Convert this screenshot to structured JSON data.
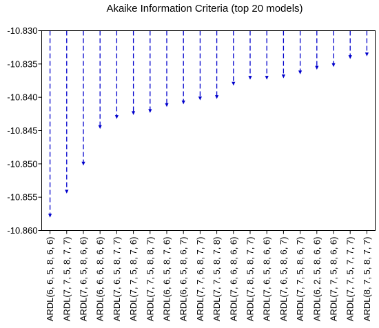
{
  "chart_data": {
    "type": "dropline",
    "title": "Akaike Information Criteria (top 20 models)",
    "xlabel": "",
    "ylabel": "",
    "ylim": [
      -10.86,
      -10.83
    ],
    "yticks": [
      "-10.830",
      "-10.835",
      "-10.840",
      "-10.845",
      "-10.850",
      "-10.855",
      "-10.860"
    ],
    "grid": false,
    "color": "#0000cc",
    "categories": [
      "ARDL(6, 6, 5, 8, 6, 6)",
      "ARDL(7, 7, 5, 8, 7, 7)",
      "ARDL(7, 6, 5, 8, 6, 6)",
      "ARDL(6, 6, 6, 8, 6, 6)",
      "ARDL(7, 6, 5, 8, 7, 7)",
      "ARDL(7, 7, 5, 8, 7, 6)",
      "ARDL(7, 7, 5, 8, 8, 7)",
      "ARDL(6, 6, 5, 8, 7, 6)",
      "ARDL(6, 6, 5, 8, 6, 7)",
      "ARDL(7, 7, 6, 8, 7, 7)",
      "ARDL(7, 7, 5, 8, 7, 8)",
      "ARDL(7, 6, 6, 8, 6, 6)",
      "ARDL(7, 8, 5, 8, 7, 7)",
      "ARDL(7, 6, 5, 8, 6, 6)",
      "ARDL(7, 6, 5, 8, 6, 7)",
      "ARDL(7, 7, 5, 8, 6, 7)",
      "ARDL(6, 2, 5, 8, 6, 6)",
      "ARDL(7, 7, 5, 8, 6, 6)",
      "ARDL(7, 7, 5, 7, 7, 7)",
      "ARDL(8, 7, 5, 8, 7, 7)"
    ],
    "values": [
      -10.8579,
      -10.8543,
      -10.8501,
      -10.8446,
      -10.8431,
      -10.8425,
      -10.8422,
      -10.8413,
      -10.8409,
      -10.8403,
      -10.8401,
      -10.8381,
      -10.8372,
      -10.8372,
      -10.837,
      -10.8364,
      -10.8357,
      -10.8353,
      -10.8341,
      -10.8337
    ]
  }
}
